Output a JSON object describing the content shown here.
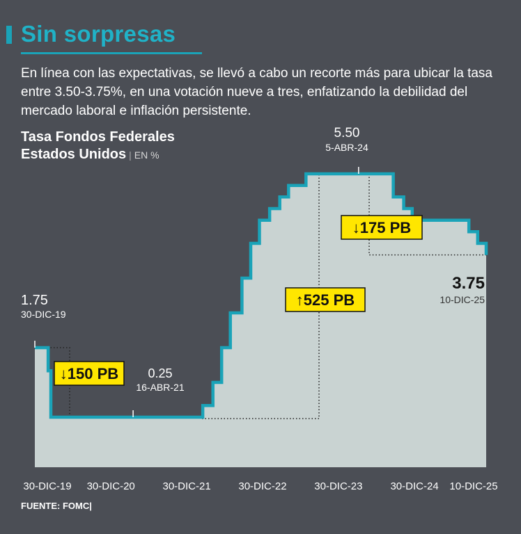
{
  "header": {
    "title": "Sin sorpresas",
    "subtitle": "En línea con las expectativas, se llevó a cabo un recorte más para ubicar la tasa entre 3.50-3.75%, en una votación nueve a tres, enfatizando la debilidad del mercado laboral e inflación persistente."
  },
  "chart_title": {
    "line1": "Tasa Fondos Federales",
    "line2": "Estados Unidos",
    "separator": "|",
    "unit": "EN %"
  },
  "source": "FUENTE: FOMC|",
  "colors": {
    "background": "#4b4e55",
    "accent": "#1aa3b8",
    "area_fill": "#c9d3d2",
    "highlight": "#ffe600"
  },
  "chart_data": {
    "type": "area",
    "step": true,
    "grid": false,
    "x_ticks": [
      "30-DIC-19",
      "30-DIC-20",
      "30-DIC-21",
      "30-DIC-22",
      "30-DIC-23",
      "30-DIC-24",
      "10-DIC-25"
    ],
    "x_tick_dates": [
      "2019-12-30",
      "2020-12-30",
      "2021-12-30",
      "2022-12-30",
      "2023-12-30",
      "2024-12-30",
      "2025-12-10"
    ],
    "ylim": [
      0,
      7
    ],
    "series": [
      {
        "points": [
          {
            "date": "2019-12-30",
            "y": 1.75
          },
          {
            "date": "2020-03-03",
            "y": 1.25
          },
          {
            "date": "2020-03-16",
            "y": 0.25
          },
          {
            "date": "2022-03-17",
            "y": 0.5
          },
          {
            "date": "2022-05-05",
            "y": 1.0
          },
          {
            "date": "2022-06-16",
            "y": 1.75
          },
          {
            "date": "2022-07-28",
            "y": 2.5
          },
          {
            "date": "2022-09-22",
            "y": 3.25
          },
          {
            "date": "2022-11-03",
            "y": 4.0
          },
          {
            "date": "2022-12-15",
            "y": 4.5
          },
          {
            "date": "2023-02-02",
            "y": 4.75
          },
          {
            "date": "2023-03-23",
            "y": 5.0
          },
          {
            "date": "2023-05-04",
            "y": 5.25
          },
          {
            "date": "2023-07-27",
            "y": 5.5
          },
          {
            "date": "2024-09-19",
            "y": 5.0
          },
          {
            "date": "2024-11-08",
            "y": 4.75
          },
          {
            "date": "2024-12-19",
            "y": 4.5
          },
          {
            "date": "2025-09-18",
            "y": 4.25
          },
          {
            "date": "2025-10-30",
            "y": 4.0
          },
          {
            "date": "2025-12-10",
            "y": 3.75
          }
        ]
      }
    ],
    "point_labels": [
      {
        "value": "1.75",
        "date_label": "30-DIC-19",
        "date": "2019-12-30",
        "y": 1.75
      },
      {
        "value": "0.25",
        "date_label": "16-ABR-21",
        "date": "2021-04-16",
        "y": 0.25
      },
      {
        "value": "5.50",
        "date_label": "5-ABR-24",
        "date": "2024-04-05",
        "y": 5.5
      },
      {
        "value": "3.75",
        "date_label": "10-DIC-25",
        "date": "2025-12-10",
        "y": 3.75
      }
    ],
    "annotations": [
      {
        "label": "150 PB",
        "direction": "down"
      },
      {
        "label": "525 PB",
        "direction": "up"
      },
      {
        "label": "175 PB",
        "direction": "down"
      }
    ]
  }
}
